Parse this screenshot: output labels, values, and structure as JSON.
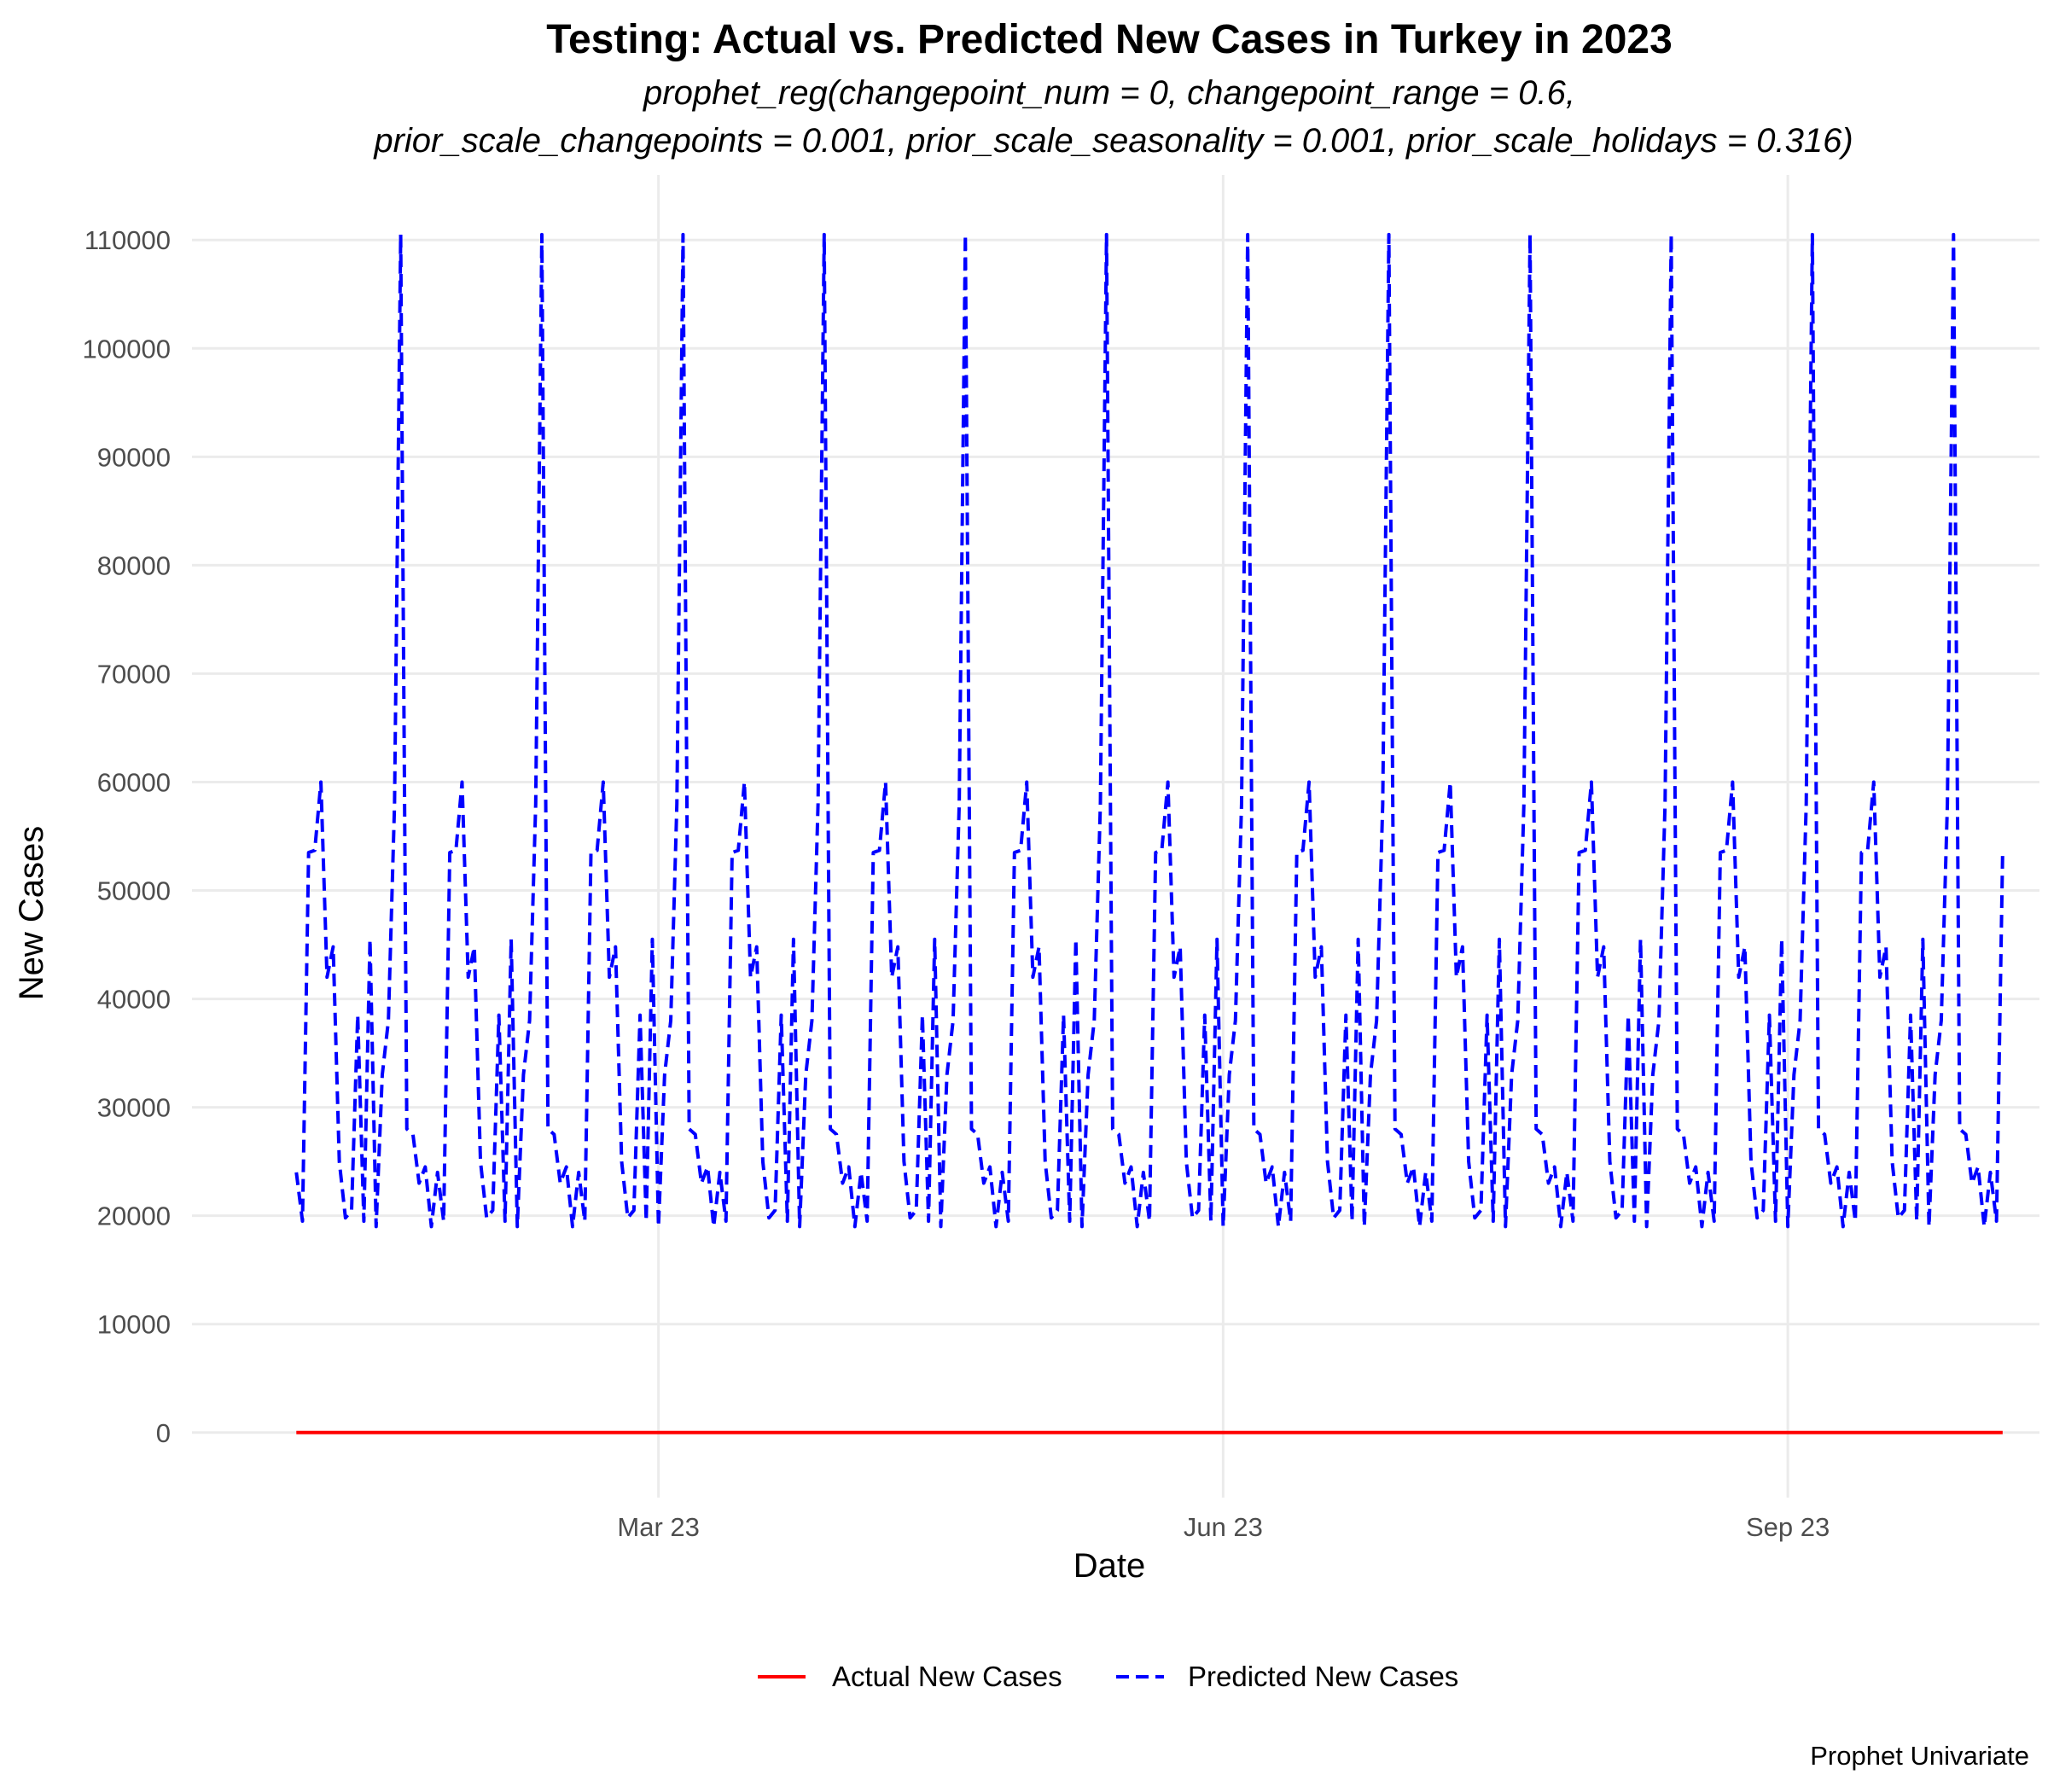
{
  "chart_data": {
    "type": "line",
    "title": "Testing: Actual vs. Predicted New Cases in Turkey in 2023",
    "subtitle_lines": [
      "prophet_reg(changepoint_num = 0, changepoint_range = 0.6,",
      "prior_scale_changepoints = 0.001, prior_scale_seasonality = 0.001, prior_scale_holidays = 0.316)"
    ],
    "xlabel": "Date",
    "ylabel": "New Cases",
    "caption": "Prophet Univariate",
    "x_range": [
      "2022-12-15",
      "2023-10-12"
    ],
    "ylim": [
      -6000,
      116000
    ],
    "y_ticks": [
      0,
      10000,
      20000,
      30000,
      40000,
      50000,
      60000,
      70000,
      80000,
      90000,
      100000,
      110000
    ],
    "x_ticks": [
      {
        "date": "2023-03-01",
        "label": "Mar 23"
      },
      {
        "date": "2023-06-01",
        "label": "Jun 23"
      },
      {
        "date": "2023-09-01",
        "label": "Sep 23"
      }
    ],
    "grid": true,
    "legend_position": "bottom",
    "series": [
      {
        "name": "Actual New Cases",
        "color": "#ff0000",
        "line_style": "solid",
        "x_start": "2023-01-01",
        "x_end": "2023-10-06",
        "constant_value": 0
      },
      {
        "name": "Predicted New Cases",
        "color": "#0000ff",
        "line_style": "dashed",
        "x_start": "2023-01-01",
        "x_end": "2023-10-06",
        "pattern_period_days": 23,
        "pattern": [
          24000,
          19500,
          53500,
          53700,
          60000,
          42000,
          44800,
          25000,
          19800,
          20500,
          38500,
          19500,
          45500,
          19000,
          33000,
          38000,
          58000,
          110500,
          28000,
          27500,
          23000,
          24500,
          19000
        ]
      }
    ]
  }
}
